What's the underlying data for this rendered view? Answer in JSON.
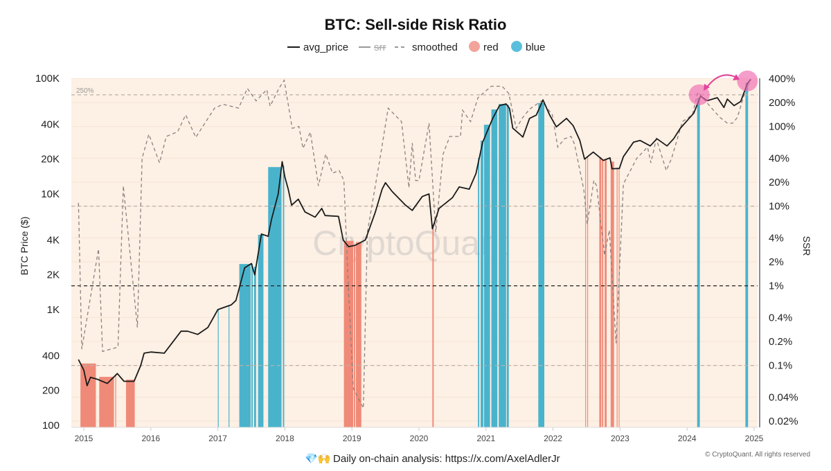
{
  "chart_data": {
    "type": "line",
    "title": "BTC: Sell-side Risk Ratio",
    "legend": {
      "placement": "top-center",
      "items": [
        {
          "name": "avg_price",
          "style": "solid",
          "color": "#1a1a1a"
        },
        {
          "name": "srr",
          "style": "solid",
          "color": "#999999"
        },
        {
          "name": "smoothed",
          "style": "dashed",
          "color": "#8a8080"
        },
        {
          "name": "red",
          "style": "dot",
          "color": "#f2a49a"
        },
        {
          "name": "blue",
          "style": "dot",
          "color": "#5bbfdc"
        }
      ]
    },
    "ylabel_left": "BTC Price ($)",
    "ylabel_right": "SSR",
    "left_axis": {
      "scale": "log",
      "range": [
        100,
        100000
      ],
      "ticks": [
        {
          "v": 100,
          "label": "100"
        },
        {
          "v": 200,
          "label": "200"
        },
        {
          "v": 400,
          "label": "400"
        },
        {
          "v": 1000,
          "label": "1K"
        },
        {
          "v": 2000,
          "label": "2K"
        },
        {
          "v": 4000,
          "label": "4K"
        },
        {
          "v": 10000,
          "label": "10K"
        },
        {
          "v": 20000,
          "label": "20K"
        },
        {
          "v": 40000,
          "label": "40K"
        },
        {
          "v": 100000,
          "label": "100K"
        }
      ]
    },
    "right_axis": {
      "scale": "log",
      "range": [
        0.02,
        400
      ],
      "ticks": [
        {
          "v": 0.02,
          "label": "0.02%"
        },
        {
          "v": 0.04,
          "label": "0.04%"
        },
        {
          "v": 0.1,
          "label": "0.1%"
        },
        {
          "v": 0.2,
          "label": "0.2%"
        },
        {
          "v": 0.4,
          "label": "0.4%"
        },
        {
          "v": 1,
          "label": "1%"
        },
        {
          "v": 2,
          "label": "2%"
        },
        {
          "v": 4,
          "label": "4%"
        },
        {
          "v": 10,
          "label": "10%"
        },
        {
          "v": 20,
          "label": "20%"
        },
        {
          "v": 40,
          "label": "40%"
        },
        {
          "v": 100,
          "label": "100%"
        },
        {
          "v": 200,
          "label": "200%"
        },
        {
          "v": 400,
          "label": "400%"
        }
      ]
    },
    "x_axis": {
      "type": "date",
      "range": [
        2014.85,
        2025.05
      ],
      "ticks": [
        {
          "v": 2015,
          "label": "2015"
        },
        {
          "v": 2016,
          "label": "2016"
        },
        {
          "v": 2017,
          "label": "2017"
        },
        {
          "v": 2018,
          "label": "2018"
        },
        {
          "v": 2019,
          "label": "2019"
        },
        {
          "v": 2020,
          "label": "2020"
        },
        {
          "v": 2021,
          "label": "2021"
        },
        {
          "v": 2022,
          "label": "2022"
        },
        {
          "v": 2023,
          "label": "2023"
        },
        {
          "v": 2024,
          "label": "2024"
        },
        {
          "v": 2025,
          "label": "2025"
        }
      ]
    },
    "reference_lines": [
      {
        "axis": "right",
        "value": 250,
        "label": "250%",
        "style": "dashed",
        "color": "#bbb0a8"
      },
      {
        "axis": "right",
        "value": 10,
        "label": "",
        "style": "dashed",
        "color": "#bbb0a8"
      },
      {
        "axis": "right",
        "value": 1,
        "label": "",
        "style": "dashed",
        "color": "#222222"
      },
      {
        "axis": "right",
        "value": 0.1,
        "label": "",
        "style": "dashed",
        "color": "#bbb0a8"
      }
    ],
    "avg_price": [
      [
        2014.92,
        370
      ],
      [
        2015.0,
        300
      ],
      [
        2015.05,
        220
      ],
      [
        2015.1,
        260
      ],
      [
        2015.2,
        250
      ],
      [
        2015.35,
        230
      ],
      [
        2015.5,
        280
      ],
      [
        2015.6,
        240
      ],
      [
        2015.75,
        240
      ],
      [
        2015.85,
        330
      ],
      [
        2015.9,
        420
      ],
      [
        2016.0,
        430
      ],
      [
        2016.2,
        420
      ],
      [
        2016.45,
        650
      ],
      [
        2016.55,
        650
      ],
      [
        2016.7,
        610
      ],
      [
        2016.85,
        700
      ],
      [
        2017.0,
        1000
      ],
      [
        2017.1,
        1050
      ],
      [
        2017.2,
        1100
      ],
      [
        2017.27,
        1200
      ],
      [
        2017.4,
        2300
      ],
      [
        2017.5,
        2500
      ],
      [
        2017.55,
        2000
      ],
      [
        2017.65,
        4500
      ],
      [
        2017.75,
        4300
      ],
      [
        2017.8,
        6000
      ],
      [
        2017.9,
        10000
      ],
      [
        2017.96,
        19000
      ],
      [
        2018.0,
        14000
      ],
      [
        2018.05,
        11000
      ],
      [
        2018.1,
        8000
      ],
      [
        2018.2,
        9000
      ],
      [
        2018.3,
        7000
      ],
      [
        2018.45,
        6300
      ],
      [
        2018.55,
        7500
      ],
      [
        2018.6,
        6500
      ],
      [
        2018.8,
        6400
      ],
      [
        2018.87,
        4000
      ],
      [
        2018.95,
        3500
      ],
      [
        2019.05,
        3600
      ],
      [
        2019.2,
        4000
      ],
      [
        2019.35,
        7000
      ],
      [
        2019.45,
        11000
      ],
      [
        2019.5,
        12500
      ],
      [
        2019.6,
        10500
      ],
      [
        2019.8,
        8000
      ],
      [
        2019.9,
        7200
      ],
      [
        2020.05,
        9500
      ],
      [
        2020.15,
        10000
      ],
      [
        2020.2,
        5000
      ],
      [
        2020.3,
        7500
      ],
      [
        2020.5,
        9300
      ],
      [
        2020.6,
        11500
      ],
      [
        2020.75,
        11000
      ],
      [
        2020.85,
        15000
      ],
      [
        2020.95,
        28000
      ],
      [
        2021.1,
        45000
      ],
      [
        2021.2,
        58000
      ],
      [
        2021.3,
        60000
      ],
      [
        2021.35,
        55000
      ],
      [
        2021.4,
        37000
      ],
      [
        2021.5,
        33000
      ],
      [
        2021.55,
        31000
      ],
      [
        2021.65,
        45000
      ],
      [
        2021.75,
        48000
      ],
      [
        2021.85,
        65000
      ],
      [
        2021.95,
        48000
      ],
      [
        2022.05,
        38000
      ],
      [
        2022.2,
        45000
      ],
      [
        2022.3,
        39000
      ],
      [
        2022.4,
        29000
      ],
      [
        2022.47,
        20000
      ],
      [
        2022.6,
        23000
      ],
      [
        2022.75,
        19500
      ],
      [
        2022.85,
        20500
      ],
      [
        2022.88,
        16500
      ],
      [
        2022.99,
        16600
      ],
      [
        2023.05,
        21000
      ],
      [
        2023.2,
        28000
      ],
      [
        2023.3,
        29000
      ],
      [
        2023.45,
        26000
      ],
      [
        2023.55,
        30000
      ],
      [
        2023.7,
        26000
      ],
      [
        2023.8,
        30000
      ],
      [
        2023.9,
        37000
      ],
      [
        2024.0,
        43000
      ],
      [
        2024.1,
        50000
      ],
      [
        2024.2,
        70000
      ],
      [
        2024.3,
        64000
      ],
      [
        2024.45,
        68000
      ],
      [
        2024.55,
        56000
      ],
      [
        2024.6,
        66000
      ],
      [
        2024.7,
        58000
      ],
      [
        2024.8,
        63000
      ],
      [
        2024.9,
        90000
      ],
      [
        2024.95,
        98000
      ]
    ],
    "smoothed": [
      [
        2014.92,
        11
      ],
      [
        2014.97,
        0.16
      ],
      [
        2015.22,
        2.9
      ],
      [
        2015.28,
        0.15
      ],
      [
        2015.51,
        0.17
      ],
      [
        2015.59,
        18
      ],
      [
        2015.8,
        0.3
      ],
      [
        2015.87,
        40
      ],
      [
        2015.97,
        80
      ],
      [
        2016.13,
        35
      ],
      [
        2016.23,
        75
      ],
      [
        2016.4,
        86
      ],
      [
        2016.52,
        140
      ],
      [
        2016.67,
        73
      ],
      [
        2016.95,
        170
      ],
      [
        2017.08,
        190
      ],
      [
        2017.31,
        170
      ],
      [
        2017.44,
        300
      ],
      [
        2017.57,
        210
      ],
      [
        2017.73,
        290
      ],
      [
        2017.78,
        180
      ],
      [
        2017.91,
        300
      ],
      [
        2017.99,
        380
      ],
      [
        2018.11,
        95
      ],
      [
        2018.21,
        100
      ],
      [
        2018.27,
        53
      ],
      [
        2018.38,
        85
      ],
      [
        2018.5,
        18
      ],
      [
        2018.61,
        45
      ],
      [
        2018.71,
        26
      ],
      [
        2018.81,
        28
      ],
      [
        2018.88,
        21
      ],
      [
        2018.94,
        1.3
      ],
      [
        2019.02,
        0.052
      ],
      [
        2019.17,
        0.029
      ],
      [
        2019.23,
        4.7
      ],
      [
        2019.43,
        45
      ],
      [
        2019.54,
        170
      ],
      [
        2019.74,
        115
      ],
      [
        2019.85,
        17
      ],
      [
        2019.9,
        62
      ],
      [
        2019.95,
        21
      ],
      [
        2020.0,
        21
      ],
      [
        2020.15,
        110
      ],
      [
        2020.25,
        4.7
      ],
      [
        2020.36,
        45
      ],
      [
        2020.46,
        75
      ],
      [
        2020.62,
        75
      ],
      [
        2020.65,
        160
      ],
      [
        2020.77,
        115
      ],
      [
        2020.88,
        230
      ],
      [
        2021.08,
        320
      ],
      [
        2021.24,
        320
      ],
      [
        2021.34,
        260
      ],
      [
        2021.45,
        95
      ],
      [
        2021.55,
        130
      ],
      [
        2021.65,
        165
      ],
      [
        2021.83,
        210
      ],
      [
        2021.99,
        140
      ],
      [
        2022.07,
        55
      ],
      [
        2022.17,
        70
      ],
      [
        2022.27,
        75
      ],
      [
        2022.32,
        60
      ],
      [
        2022.46,
        16
      ],
      [
        2022.51,
        6
      ],
      [
        2022.61,
        21
      ],
      [
        2022.65,
        18
      ],
      [
        2022.77,
        2.4
      ],
      [
        2022.84,
        5
      ],
      [
        2022.94,
        0.19
      ],
      [
        2023.01,
        3.5
      ],
      [
        2023.05,
        19
      ],
      [
        2023.25,
        40
      ],
      [
        2023.41,
        55
      ],
      [
        2023.46,
        35
      ],
      [
        2023.54,
        70
      ],
      [
        2023.69,
        28
      ],
      [
        2023.77,
        40
      ],
      [
        2023.93,
        115
      ],
      [
        2024.08,
        140
      ],
      [
        2024.16,
        270
      ],
      [
        2024.34,
        180
      ],
      [
        2024.49,
        130
      ],
      [
        2024.6,
        110
      ],
      [
        2024.68,
        110
      ],
      [
        2024.75,
        130
      ],
      [
        2024.89,
        320
      ],
      [
        2024.93,
        350
      ]
    ],
    "red_periods": [
      [
        2014.95,
        2015.18
      ],
      [
        2015.23,
        2015.45
      ],
      [
        2015.47,
        2015.48
      ],
      [
        2015.63,
        2015.76
      ],
      [
        2018.88,
        2019.02
      ],
      [
        2019.03,
        2019.05
      ],
      [
        2019.06,
        2019.14
      ],
      [
        2020.2,
        2020.22
      ],
      [
        2022.48,
        2022.49
      ],
      [
        2022.51,
        2022.52
      ],
      [
        2022.69,
        2022.72
      ],
      [
        2022.73,
        2022.75
      ],
      [
        2022.77,
        2022.8
      ],
      [
        2022.86,
        2022.91
      ],
      [
        2022.95,
        2022.96
      ],
      [
        2022.98,
        2022.99
      ]
    ],
    "blue_periods": [
      [
        2017.0,
        2017.01
      ],
      [
        2017.16,
        2017.17
      ],
      [
        2017.32,
        2017.49
      ],
      [
        2017.5,
        2017.52
      ],
      [
        2017.54,
        2017.57
      ],
      [
        2017.6,
        2017.68
      ],
      [
        2017.75,
        2017.95
      ],
      [
        2017.97,
        2017.99
      ],
      [
        2020.88,
        2020.9
      ],
      [
        2020.92,
        2020.96
      ],
      [
        2020.97,
        2021.06
      ],
      [
        2021.08,
        2021.17
      ],
      [
        2021.19,
        2021.3
      ],
      [
        2021.31,
        2021.34
      ],
      [
        2021.78,
        2021.87
      ],
      [
        2024.15,
        2024.19
      ],
      [
        2024.87,
        2024.91
      ]
    ],
    "annotations": {
      "highlight_color": "#f06ab0",
      "arrow_color": "#e0449a",
      "highlights": [
        [
          2024.18,
          72000
        ],
        [
          2024.9,
          95000
        ]
      ]
    }
  },
  "watermark": "CryptoQuant",
  "footer": {
    "text": "Daily on-chain analysis: https://x.com/AxelAdlerJr",
    "emoji": "💎🙌",
    "copyright": "© CryptoQuant. All rights reserved"
  }
}
